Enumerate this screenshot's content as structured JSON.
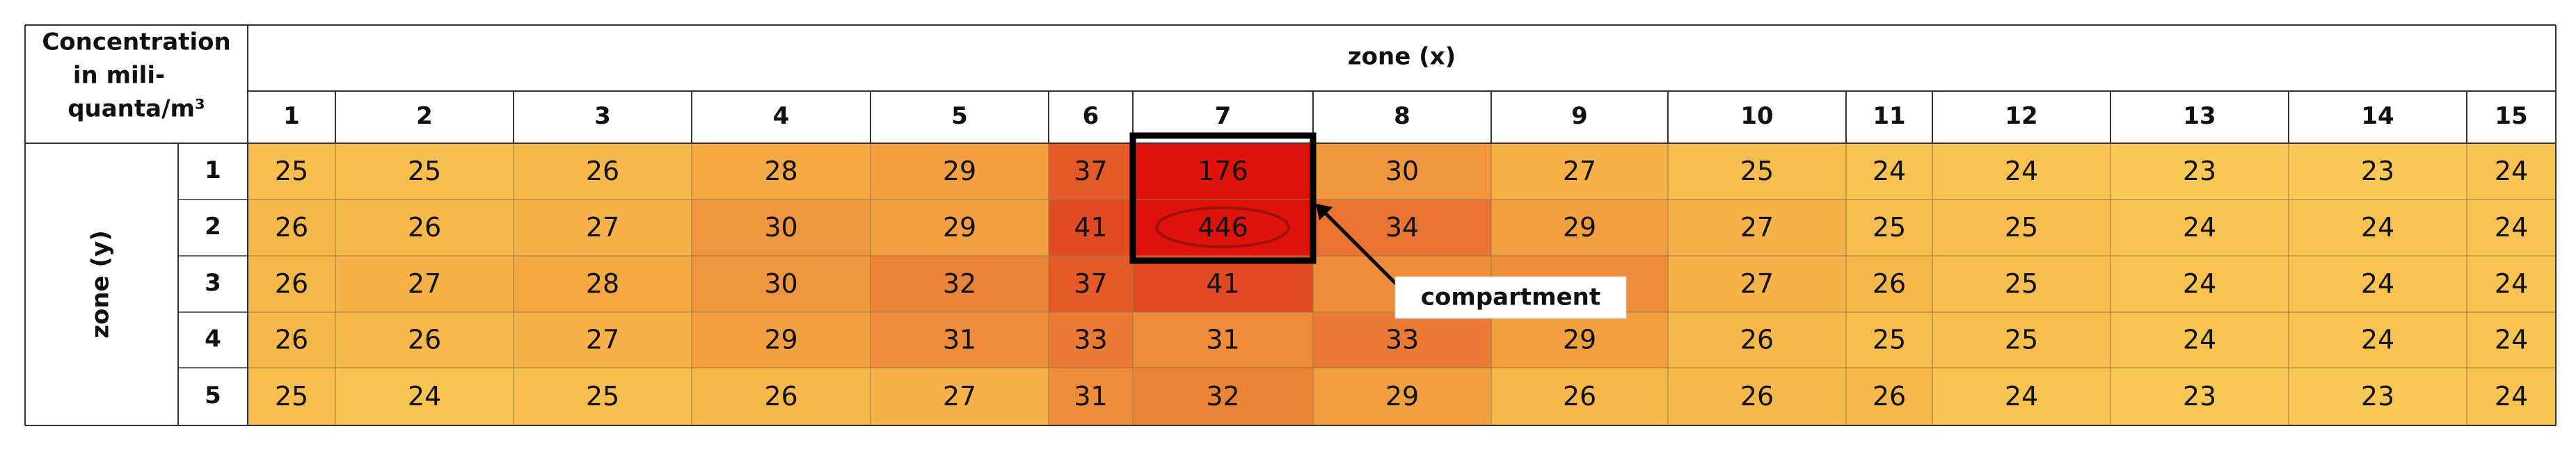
{
  "header": {
    "corner": [
      "Concentration",
      "in mili-",
      "quanta/m³"
    ],
    "x_title": "zone (x)",
    "y_title": "zone (y)"
  },
  "table": {
    "columns": [
      1,
      2,
      3,
      4,
      5,
      6,
      7,
      8,
      9,
      10,
      11,
      12,
      13,
      14,
      15
    ],
    "rows": [
      {
        "label": 1,
        "values": [
          25,
          25,
          26,
          28,
          29,
          37,
          176,
          30,
          27,
          25,
          24,
          24,
          23,
          23,
          24
        ]
      },
      {
        "label": 2,
        "values": [
          26,
          26,
          27,
          30,
          29,
          41,
          446,
          34,
          29,
          27,
          25,
          25,
          24,
          24,
          24
        ]
      },
      {
        "label": 3,
        "values": [
          26,
          27,
          28,
          30,
          32,
          37,
          41,
          null,
          null,
          27,
          26,
          25,
          24,
          24,
          24
        ]
      },
      {
        "label": 4,
        "values": [
          26,
          26,
          27,
          29,
          31,
          33,
          31,
          33,
          29,
          26,
          25,
          25,
          24,
          24,
          24
        ]
      },
      {
        "label": 5,
        "values": [
          25,
          24,
          25,
          26,
          27,
          31,
          32,
          29,
          26,
          26,
          26,
          24,
          23,
          23,
          24
        ]
      }
    ]
  },
  "annotation": "compartment"
}
